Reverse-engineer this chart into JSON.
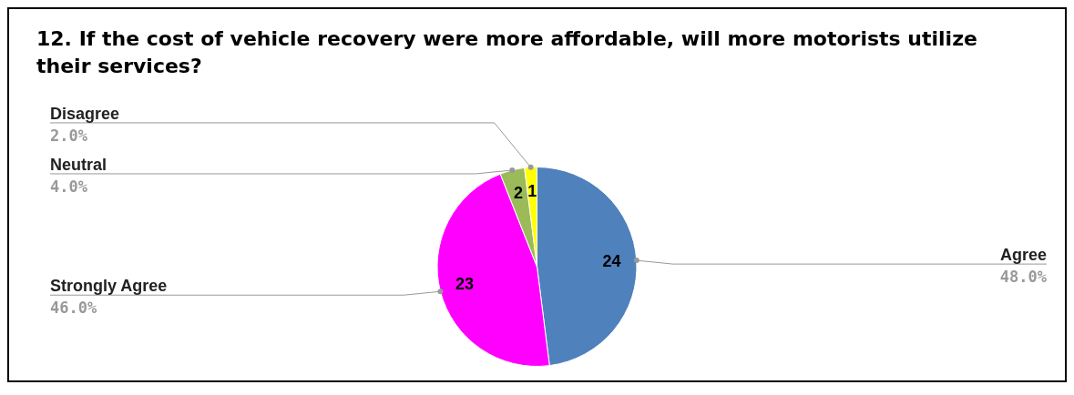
{
  "chart_data": {
    "type": "pie",
    "title": "12. If the cost of vehicle recovery were more affordable, will more motorists utilize their services?",
    "categories": [
      "Agree",
      "Strongly Agree",
      "Neutral",
      "Disagree"
    ],
    "values": [
      24,
      23,
      2,
      1
    ],
    "colors": [
      "#4f81bd",
      "#ff00ff",
      "#9bbb59",
      "#ffff00"
    ],
    "annotations": [
      "48.0%",
      "46.0%",
      "4.0%",
      "2.0%"
    ],
    "data_labels": true,
    "legend": false
  }
}
